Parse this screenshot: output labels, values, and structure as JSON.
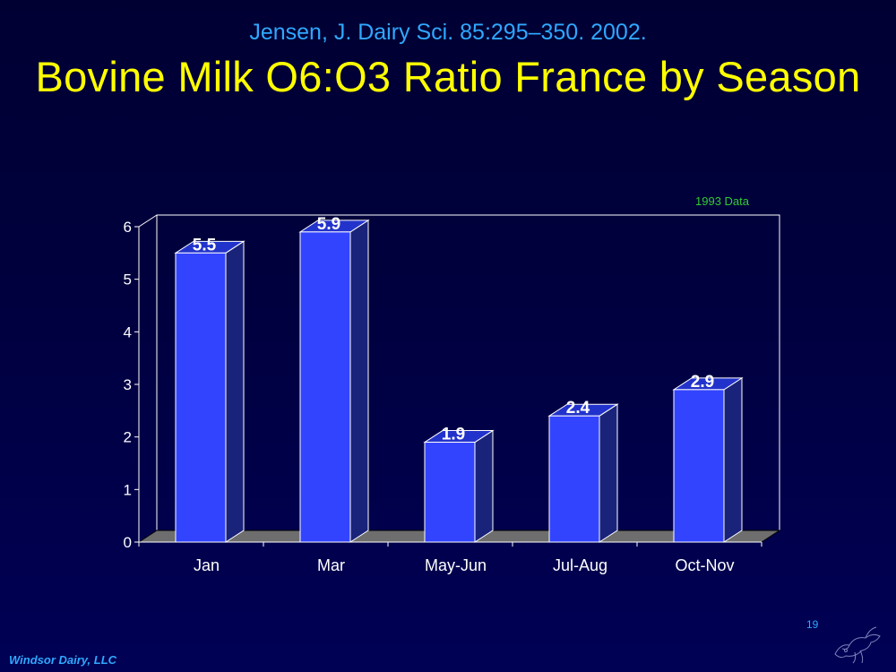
{
  "slide": {
    "subtitle": "Jensen, J. Dairy Sci. 85:295–350. 2002.",
    "title": "Bovine Milk O6:O3 Ratio France by Season",
    "footer": "Windsor Dairy, LLC",
    "page_number": "19",
    "logo_icon": "cow-sketch-icon"
  },
  "colors": {
    "background": "#000040",
    "subtitle": "#2fa8ff",
    "title": "#ffff00",
    "bar_front": "#3344ff",
    "bar_side": "#1a237a",
    "bar_top": "#2233cc",
    "floor": "#6e6e6e",
    "annotation": "#33cc33",
    "axis_text": "#ffffff"
  },
  "chart_data": {
    "type": "bar",
    "categories": [
      "Jan",
      "Mar",
      "May-Jun",
      "Jul-Aug",
      "Oct-Nov"
    ],
    "values": [
      5.5,
      5.9,
      1.9,
      2.4,
      2.9
    ],
    "data_labels": [
      "5.5",
      "5.9",
      "1.9",
      "2.4",
      "2.9"
    ],
    "ylim": [
      0,
      6
    ],
    "yticks": [
      "0",
      "1",
      "2",
      "3",
      "4",
      "5",
      "6"
    ],
    "annotation": "1993 Data",
    "grid": false,
    "style": "3d"
  }
}
